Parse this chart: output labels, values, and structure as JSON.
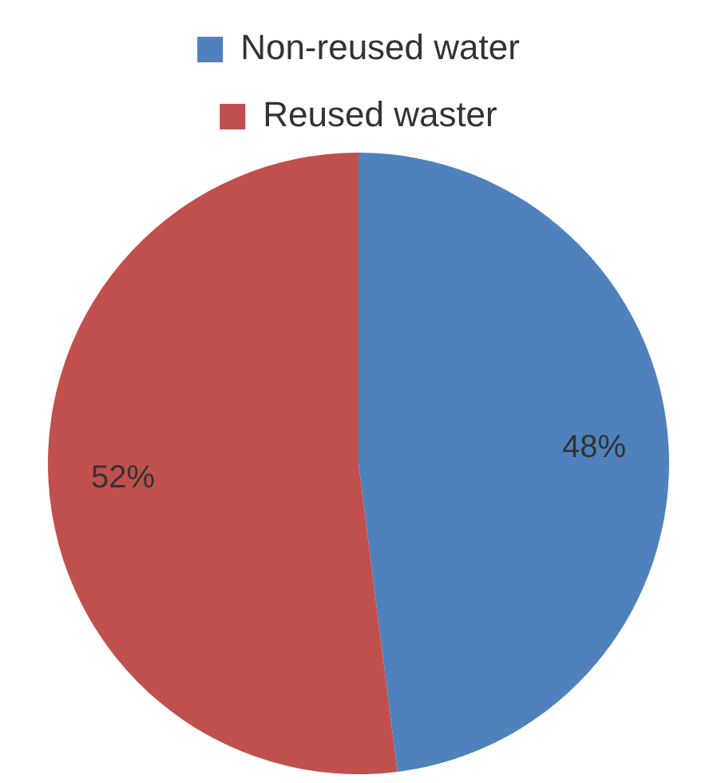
{
  "chart_data": {
    "type": "pie",
    "categories": [
      "Non-reused water",
      "Reused waster"
    ],
    "values": [
      48,
      52
    ],
    "colors": [
      "#4f81bd",
      "#c0504d"
    ],
    "value_labels": [
      "48%",
      "52%"
    ],
    "legend": "top"
  }
}
